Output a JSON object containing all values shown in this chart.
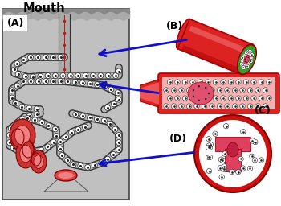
{
  "title": "Mouth",
  "panel_A_label": "(A)",
  "panel_B_label": "(B)",
  "panel_C_label": "(C)",
  "panel_D_label": "(D)",
  "bg_color": "#ffffff",
  "arrow_color": "#1010cc",
  "panel_A_bg": "#c8c8c8",
  "red_dark": "#cc1111",
  "red_mid": "#dd3333",
  "red_bright": "#ee4444",
  "red_light": "#ee8888",
  "pink_light": "#f5b8b8",
  "pink_mid": "#e87878",
  "green_outline": "#22aa22",
  "cell_white": "#ffffff",
  "cell_border": "#222222",
  "pink_center": "#d04060",
  "cell_pink": "#f0a0b0"
}
